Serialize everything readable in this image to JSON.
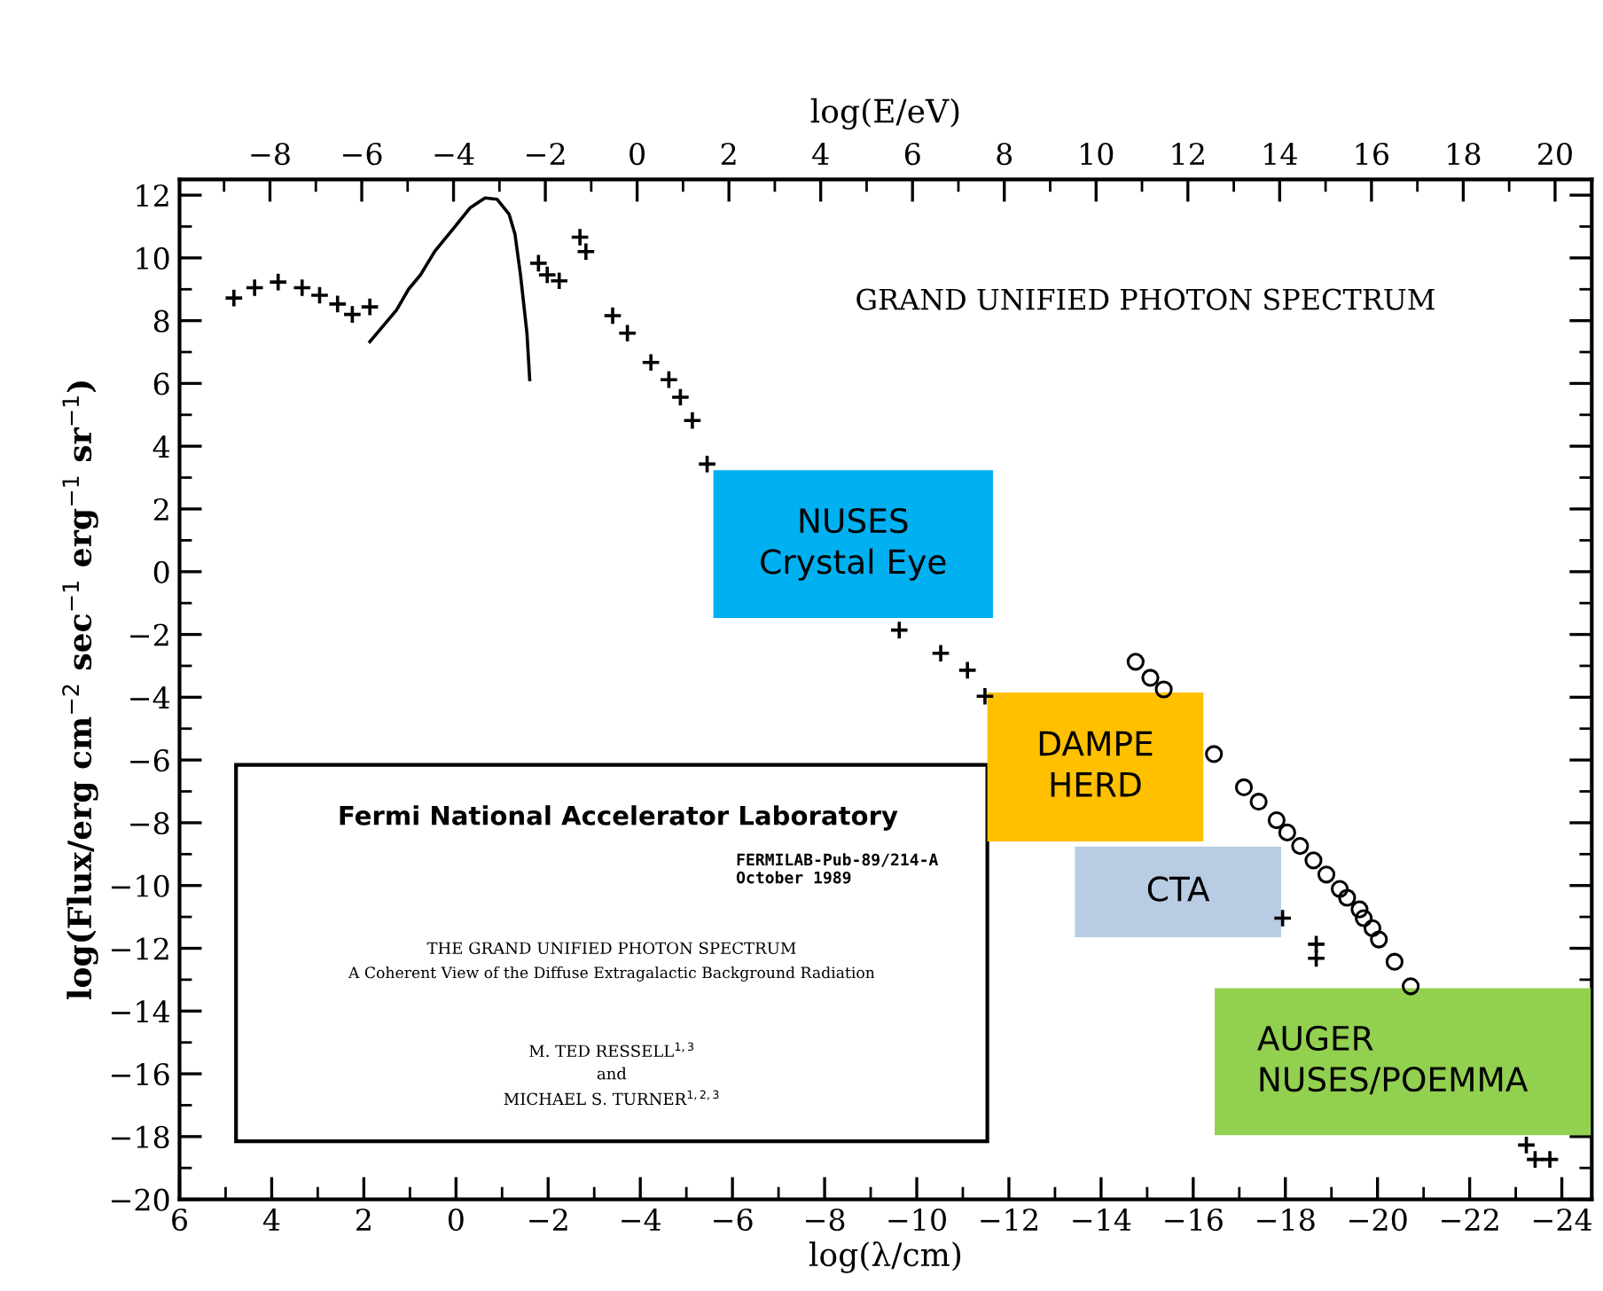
{
  "chart_data": {
    "type": "scatter",
    "title": "GRAND UNIFIED PHOTON SPECTRUM",
    "xlabel": "log(λ/cm)",
    "x2label": "log(E/eV)",
    "ylabel": "log(Flux/erg cm$^{−2}$ sec$^{−1}$ erg$^{−1}$ sr$^{−1}$)",
    "xlim": [
      6,
      -24.65
    ],
    "xticks": [
      6,
      4,
      2,
      0,
      {
        "value": -2,
        "label": "−2"
      },
      {
        "value": -4,
        "label": "−4"
      },
      {
        "value": -6,
        "label": "−6"
      },
      {
        "value": -8,
        "label": "−8"
      },
      {
        "value": -10,
        "label": "−10"
      },
      {
        "value": -12,
        "label": "−12"
      },
      {
        "value": -14,
        "label": "−14"
      },
      {
        "value": -16,
        "label": "−16"
      },
      {
        "value": -18,
        "label": "−18"
      },
      {
        "value": -20,
        "label": "−20"
      },
      {
        "value": -22,
        "label": "−22"
      },
      {
        "value": -24,
        "label": "−24"
      }
    ],
    "x2lim": [
      -9.97,
      20.8
    ],
    "x2ticks": [
      {
        "value": -8,
        "label": "−8"
      },
      {
        "value": -6,
        "label": "−6"
      },
      {
        "value": -4,
        "label": "−4"
      },
      {
        "value": -2,
        "label": "−2"
      },
      0,
      2,
      4,
      6,
      8,
      10,
      12,
      14,
      16,
      18,
      20
    ],
    "ylim": [
      -20,
      12.5
    ],
    "yticks": [
      {
        "value": -20,
        "label": "−20"
      },
      {
        "value": -18,
        "label": "−18"
      },
      {
        "value": -16,
        "label": "−16"
      },
      {
        "value": -14,
        "label": "−14"
      },
      {
        "value": -12,
        "label": "−12"
      },
      {
        "value": -10,
        "label": "−10"
      },
      {
        "value": -8,
        "label": "−8"
      },
      {
        "value": -6,
        "label": "−6"
      },
      {
        "value": -4,
        "label": "−4"
      },
      {
        "value": -2,
        "label": "−2"
      },
      0,
      2,
      4,
      6,
      8,
      10,
      12
    ],
    "grid": false,
    "series": [
      {
        "marker": "cross",
        "color": "#000000",
        "x": [
          4.82,
          4.37,
          3.86,
          3.34,
          2.96,
          2.57,
          2.25,
          1.87
        ],
        "values": [
          8.72,
          9.05,
          9.23,
          9.05,
          8.81,
          8.53,
          8.2,
          8.44
        ]
      },
      {
        "type": "line",
        "marker": "none",
        "color": "#000000",
        "x": [
          1.87,
          1.29,
          1.03,
          0.77,
          0.46,
          0.07,
          -0.31,
          -0.63,
          -0.89,
          -1.15,
          -1.28,
          -1.4,
          -1.54,
          -1.6
        ],
        "values": [
          7.33,
          8.34,
          9.0,
          9.46,
          10.21,
          10.91,
          11.6,
          11.91,
          11.87,
          11.4,
          10.76,
          9.46,
          7.6,
          6.12
        ]
      },
      {
        "marker": "cross",
        "color": "#000000",
        "x": [
          -1.79,
          -1.98,
          -2.24,
          -2.69,
          -2.82,
          -3.4,
          -3.72,
          -4.23,
          -4.62,
          -4.87,
          -5.13,
          -5.45,
          -9.62,
          -10.52,
          -11.1,
          -11.48
        ],
        "values": [
          9.83,
          9.46,
          9.27,
          10.66,
          10.2,
          8.16,
          7.6,
          6.67,
          6.12,
          5.56,
          4.82,
          3.43,
          -1.86,
          -2.6,
          -3.14,
          -3.97
        ]
      },
      {
        "marker": "circle",
        "color": "#000000",
        "x": [
          -14.75,
          -15.07,
          -15.36,
          -16.45,
          -17.1,
          -17.42,
          -17.81,
          -18.04,
          -18.32,
          -18.61,
          -18.89,
          -19.18,
          -19.34,
          -19.61,
          -19.7,
          -19.89,
          -20.03,
          -20.37,
          -20.72
        ],
        "values": [
          -2.87,
          -3.38,
          -3.75,
          -5.81,
          -6.87,
          -7.33,
          -7.92,
          -8.31,
          -8.74,
          -9.2,
          -9.65,
          -10.11,
          -10.39,
          -10.76,
          -11.04,
          -11.36,
          -11.72,
          -12.43,
          -13.21
        ]
      },
      {
        "marker": "cross",
        "color": "#000000",
        "x": [
          -17.94,
          -18.67,
          -18.67,
          -23.23,
          -23.42,
          -23.74
        ],
        "values": [
          -11.04,
          -11.87,
          -12.32,
          -18.27,
          -18.73,
          -18.73
        ]
      }
    ],
    "annotations": [
      "NUSES\nCrystal Eye",
      "DAMPE\nHERD",
      "CTA",
      "AUGER\nNUSES/POEMMA",
      "Fermi National Accelerator Laboratory",
      "FERMILAB-Pub-89/214-A\nOctober 1989",
      "THE GRAND UNIFIED PHOTON SPECTRUM",
      "A Coherent View of the Diffuse Extragalactic Background Radiation",
      "M. TED RESSELL$^{1,3}$",
      "and",
      "MICHAEL S. TURNER$^{1,2,3}$"
    ]
  }
}
